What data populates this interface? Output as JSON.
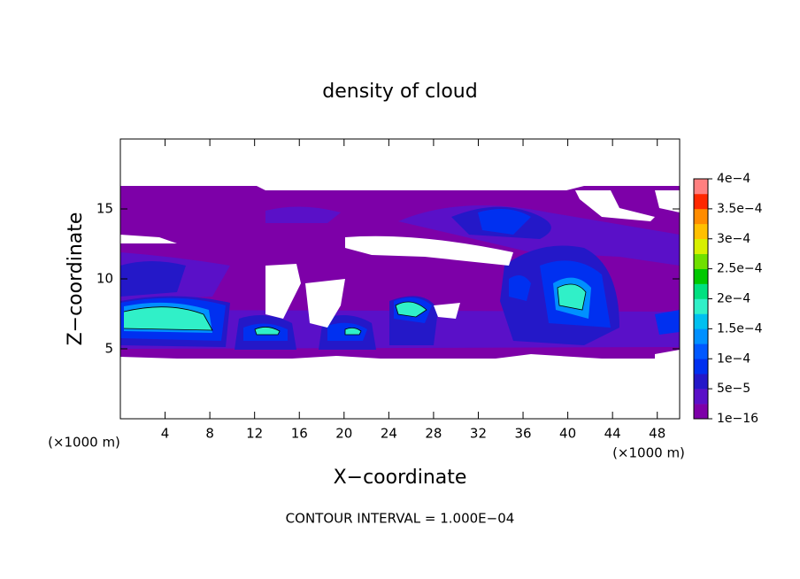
{
  "chart_data": {
    "type": "contour",
    "title": "density of cloud",
    "x_label": "X−coordinate",
    "y_label": "Z−coordinate",
    "x_unit": "(×1000 m)",
    "y_unit": "(×1000 m)",
    "footnote": "CONTOUR INTERVAL = 1.000E−04",
    "xlim": [
      0,
      50
    ],
    "xticks": [
      4,
      8,
      12,
      16,
      20,
      24,
      28,
      32,
      36,
      40,
      44,
      48
    ],
    "ylim": [
      0,
      20
    ],
    "yticks": [
      5,
      10,
      15
    ],
    "colorbar": {
      "lim": [
        0,
        0.0004
      ],
      "ticks": [
        {
          "value": 1e-16,
          "label": "1e−16"
        },
        {
          "value": 5e-05,
          "label": "5e−5"
        },
        {
          "value": 0.0001,
          "label": "1e−4"
        },
        {
          "value": 0.00015,
          "label": "1.5e−4"
        },
        {
          "value": 0.0002,
          "label": "2e−4"
        },
        {
          "value": 0.00025,
          "label": "2.5e−4"
        },
        {
          "value": 0.0003,
          "label": "3e−4"
        },
        {
          "value": 0.00035,
          "label": "3.5e−4"
        },
        {
          "value": 0.0004,
          "label": "4e−4"
        }
      ],
      "colors": [
        "#7d00a8",
        "#5a10c8",
        "#2418c8",
        "#0030f0",
        "#0058ff",
        "#0090ff",
        "#00c0f0",
        "#30f0c8",
        "#00e080",
        "#00c800",
        "#70e000",
        "#d8f000",
        "#ffc000",
        "#ff8c00",
        "#ff2800",
        "#ff8080"
      ]
    }
  }
}
